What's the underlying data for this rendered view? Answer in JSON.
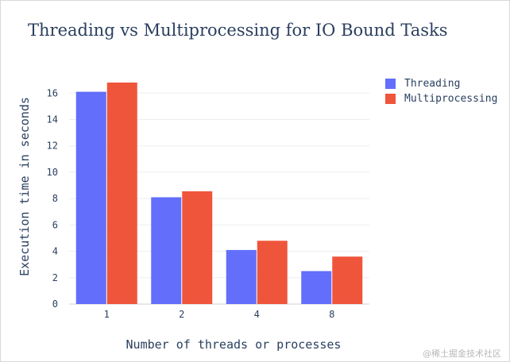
{
  "watermark": "@稀土掘金技术社区",
  "chart_data": {
    "type": "bar",
    "title": "Threading vs Multiprocessing for IO Bound Tasks",
    "xlabel": "Number of threads or processes",
    "ylabel": "Execution time in seconds",
    "categories": [
      "1",
      "2",
      "4",
      "8"
    ],
    "series": [
      {
        "name": "Threading",
        "color": "#636efa",
        "values": [
          16.1,
          8.1,
          4.1,
          2.5
        ]
      },
      {
        "name": "Multiprocessing",
        "color": "#ef553b",
        "values": [
          16.8,
          8.55,
          4.8,
          3.6
        ]
      }
    ],
    "ylim": [
      0,
      17.4
    ],
    "yticks": [
      0,
      2,
      4,
      6,
      8,
      10,
      12,
      14,
      16
    ],
    "grid": true,
    "legend": "top-right"
  }
}
